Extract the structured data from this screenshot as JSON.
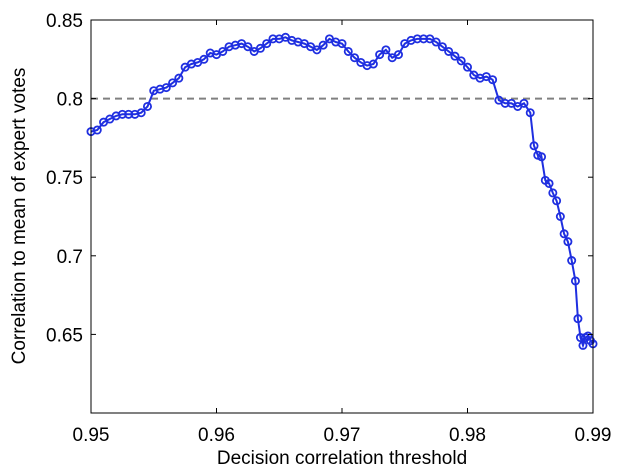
{
  "chart_data": {
    "type": "line",
    "title": "",
    "xlabel": "Decision correlation threshold",
    "ylabel": "Correlation to mean of expert votes",
    "xlim": [
      0.95,
      0.99
    ],
    "ylim": [
      0.6,
      0.85
    ],
    "xticks": [
      0.95,
      0.96,
      0.97,
      0.98,
      0.99
    ],
    "xtick_labels": [
      "0.95",
      "0.96",
      "0.97",
      "0.98",
      "0.99"
    ],
    "yticks": [
      0.65,
      0.7,
      0.75,
      0.8,
      0.85
    ],
    "ytick_labels": [
      "0.65",
      "0.7",
      "0.75",
      "0.8",
      "0.85"
    ],
    "grid": false,
    "legend": "none",
    "reference_line": {
      "y": 0.8,
      "style": "dashed",
      "color": "#808080"
    },
    "series": [
      {
        "color": "#1f2fe0",
        "marker": "circle",
        "x": [
          0.95,
          0.9505,
          0.951,
          0.9515,
          0.952,
          0.9525,
          0.953,
          0.9535,
          0.954,
          0.9545,
          0.955,
          0.9555,
          0.956,
          0.9565,
          0.957,
          0.9575,
          0.958,
          0.9585,
          0.959,
          0.9595,
          0.96,
          0.9605,
          0.961,
          0.9615,
          0.962,
          0.9625,
          0.963,
          0.9635,
          0.964,
          0.9645,
          0.965,
          0.9655,
          0.966,
          0.9665,
          0.967,
          0.9675,
          0.968,
          0.9685,
          0.969,
          0.9695,
          0.97,
          0.9705,
          0.971,
          0.9715,
          0.972,
          0.9725,
          0.973,
          0.9735,
          0.974,
          0.9745,
          0.975,
          0.9755,
          0.976,
          0.9765,
          0.977,
          0.9775,
          0.978,
          0.9785,
          0.979,
          0.9795,
          0.98,
          0.9805,
          0.981,
          0.9815,
          0.982,
          0.9825,
          0.983,
          0.9835,
          0.984,
          0.9845,
          0.985,
          0.9853,
          0.9856,
          0.9859,
          0.9862,
          0.9865,
          0.9868,
          0.9871,
          0.9874,
          0.9877,
          0.988,
          0.9883,
          0.9886,
          0.9888,
          0.989,
          0.9892,
          0.9894,
          0.9896,
          0.9898,
          0.99
        ],
        "y": [
          0.779,
          0.78,
          0.785,
          0.787,
          0.789,
          0.79,
          0.79,
          0.79,
          0.791,
          0.795,
          0.805,
          0.806,
          0.807,
          0.81,
          0.813,
          0.82,
          0.822,
          0.823,
          0.825,
          0.829,
          0.828,
          0.83,
          0.833,
          0.834,
          0.835,
          0.833,
          0.83,
          0.832,
          0.835,
          0.838,
          0.838,
          0.839,
          0.837,
          0.836,
          0.835,
          0.833,
          0.831,
          0.834,
          0.838,
          0.836,
          0.835,
          0.83,
          0.826,
          0.823,
          0.821,
          0.822,
          0.828,
          0.831,
          0.826,
          0.828,
          0.835,
          0.837,
          0.838,
          0.838,
          0.838,
          0.836,
          0.833,
          0.83,
          0.827,
          0.824,
          0.82,
          0.815,
          0.813,
          0.814,
          0.812,
          0.799,
          0.797,
          0.797,
          0.795,
          0.797,
          0.791,
          0.77,
          0.764,
          0.763,
          0.748,
          0.746,
          0.74,
          0.735,
          0.725,
          0.714,
          0.709,
          0.697,
          0.684,
          0.66,
          0.648,
          0.643,
          0.648,
          0.649,
          0.646,
          0.644
        ]
      }
    ]
  }
}
